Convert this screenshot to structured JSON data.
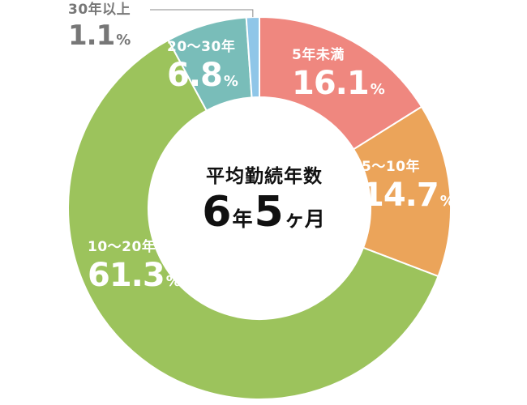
{
  "chart_data": {
    "type": "pie",
    "donut": true,
    "categories": [
      "5年未満",
      "5〜10年",
      "10〜20年",
      "20〜30年",
      "30年以上"
    ],
    "values": [
      16.1,
      14.7,
      61.3,
      6.8,
      1.1
    ],
    "value_labels": [
      "16.1",
      "14.7",
      "61.3",
      "6.8",
      "1.1"
    ],
    "unit": "%",
    "colors": [
      "#ef877f",
      "#eba45a",
      "#9cc35c",
      "#79bdb9",
      "#8fc6e8"
    ],
    "start_angle_deg": 0,
    "direction": "clockwise",
    "center_title": "平均勤続年数",
    "center_value": {
      "years": "6",
      "years_unit": "年",
      "months": "5",
      "months_unit": "ヶ月"
    }
  }
}
